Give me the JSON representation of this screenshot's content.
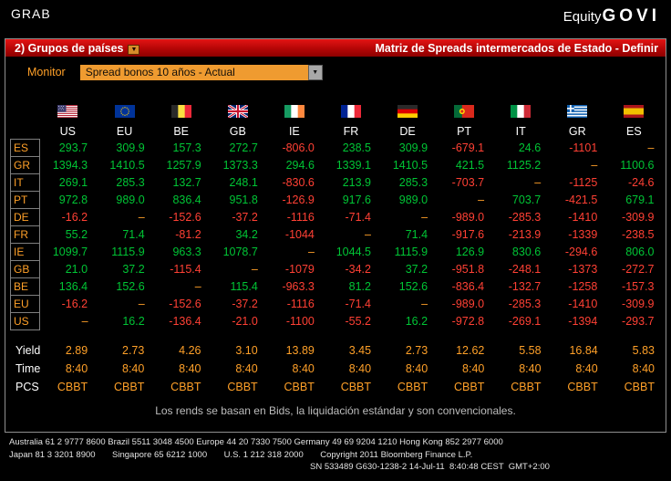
{
  "header": {
    "grab": "GRAB",
    "product": "Equity",
    "function": "GOVI"
  },
  "menubar": {
    "group_menu": "2) Grupos de países",
    "screen_title": "Matriz de Spreads intermercados de Estado - Definir"
  },
  "monitor": {
    "label": "Monitor",
    "dropdown_value": "Spread bonos 10 años - Actual"
  },
  "matrix": {
    "columns": [
      "US",
      "EU",
      "BE",
      "GB",
      "IE",
      "FR",
      "DE",
      "PT",
      "IT",
      "GR",
      "ES"
    ],
    "rows": [
      {
        "label": "ES",
        "values": [
          "293.7",
          "309.9",
          "157.3",
          "272.7",
          "-806.0",
          "238.5",
          "309.9",
          "-679.1",
          "24.6",
          "-1101",
          "–"
        ]
      },
      {
        "label": "GR",
        "values": [
          "1394.3",
          "1410.5",
          "1257.9",
          "1373.3",
          "294.6",
          "1339.1",
          "1410.5",
          "421.5",
          "1125.2",
          "–",
          "1100.6"
        ]
      },
      {
        "label": "IT",
        "values": [
          "269.1",
          "285.3",
          "132.7",
          "248.1",
          "-830.6",
          "213.9",
          "285.3",
          "-703.7",
          "–",
          "-1125",
          "-24.6"
        ]
      },
      {
        "label": "PT",
        "values": [
          "972.8",
          "989.0",
          "836.4",
          "951.8",
          "-126.9",
          "917.6",
          "989.0",
          "–",
          "703.7",
          "-421.5",
          "679.1"
        ]
      },
      {
        "label": "DE",
        "values": [
          "-16.2",
          "–",
          "-152.6",
          "-37.2",
          "-1116",
          "-71.4",
          "–",
          "-989.0",
          "-285.3",
          "-1410",
          "-309.9"
        ]
      },
      {
        "label": "FR",
        "values": [
          "55.2",
          "71.4",
          "-81.2",
          "34.2",
          "-1044",
          "–",
          "71.4",
          "-917.6",
          "-213.9",
          "-1339",
          "-238.5"
        ]
      },
      {
        "label": "IE",
        "values": [
          "1099.7",
          "1115.9",
          "963.3",
          "1078.7",
          "–",
          "1044.5",
          "1115.9",
          "126.9",
          "830.6",
          "-294.6",
          "806.0"
        ]
      },
      {
        "label": "GB",
        "values": [
          "21.0",
          "37.2",
          "-115.4",
          "–",
          "-1079",
          "-34.2",
          "37.2",
          "-951.8",
          "-248.1",
          "-1373",
          "-272.7"
        ]
      },
      {
        "label": "BE",
        "values": [
          "136.4",
          "152.6",
          "–",
          "115.4",
          "-963.3",
          "81.2",
          "152.6",
          "-836.4",
          "-132.7",
          "-1258",
          "-157.3"
        ]
      },
      {
        "label": "EU",
        "values": [
          "-16.2",
          "–",
          "-152.6",
          "-37.2",
          "-1116",
          "-71.4",
          "–",
          "-989.0",
          "-285.3",
          "-1410",
          "-309.9"
        ]
      },
      {
        "label": "US",
        "values": [
          "–",
          "16.2",
          "-136.4",
          "-21.0",
          "-1100",
          "-55.2",
          "16.2",
          "-972.8",
          "-269.1",
          "-1394",
          "-293.7"
        ]
      }
    ]
  },
  "stats": [
    {
      "label": "Yield",
      "values": [
        "2.89",
        "2.73",
        "4.26",
        "3.10",
        "13.89",
        "3.45",
        "2.73",
        "12.62",
        "5.58",
        "16.84",
        "5.83"
      ]
    },
    {
      "label": "Time",
      "values": [
        "8:40",
        "8:40",
        "8:40",
        "8:40",
        "8:40",
        "8:40",
        "8:40",
        "8:40",
        "8:40",
        "8:40",
        "8:40"
      ]
    },
    {
      "label": "PCS",
      "values": [
        "CBBT",
        "CBBT",
        "CBBT",
        "CBBT",
        "CBBT",
        "CBBT",
        "CBBT",
        "CBBT",
        "CBBT",
        "CBBT",
        "CBBT"
      ]
    }
  ],
  "footnote": "Los rends se basan en Bids, la liquidación estándar y son convencionales.",
  "footer": {
    "line1": "Australia 61 2 9777 8600 Brazil 5511 3048 4500 Europe 44 20 7330 7500 Germany 49 69 9204 1210 Hong Kong 852 2977 6000",
    "line2": "Japan 81 3 3201 8900       Singapore 65 6212 1000       U.S. 1 212 318 2000       Copyright 2011 Bloomberg Finance L.P.",
    "line3": "SN 533489 G630-1238-2 14-Jul-11  8:40:48 CEST  GMT+2:00"
  },
  "colors": {
    "positive": "#00c535",
    "negative": "#ff4034",
    "amber": "#ffa028",
    "redbar": "#b40606"
  }
}
